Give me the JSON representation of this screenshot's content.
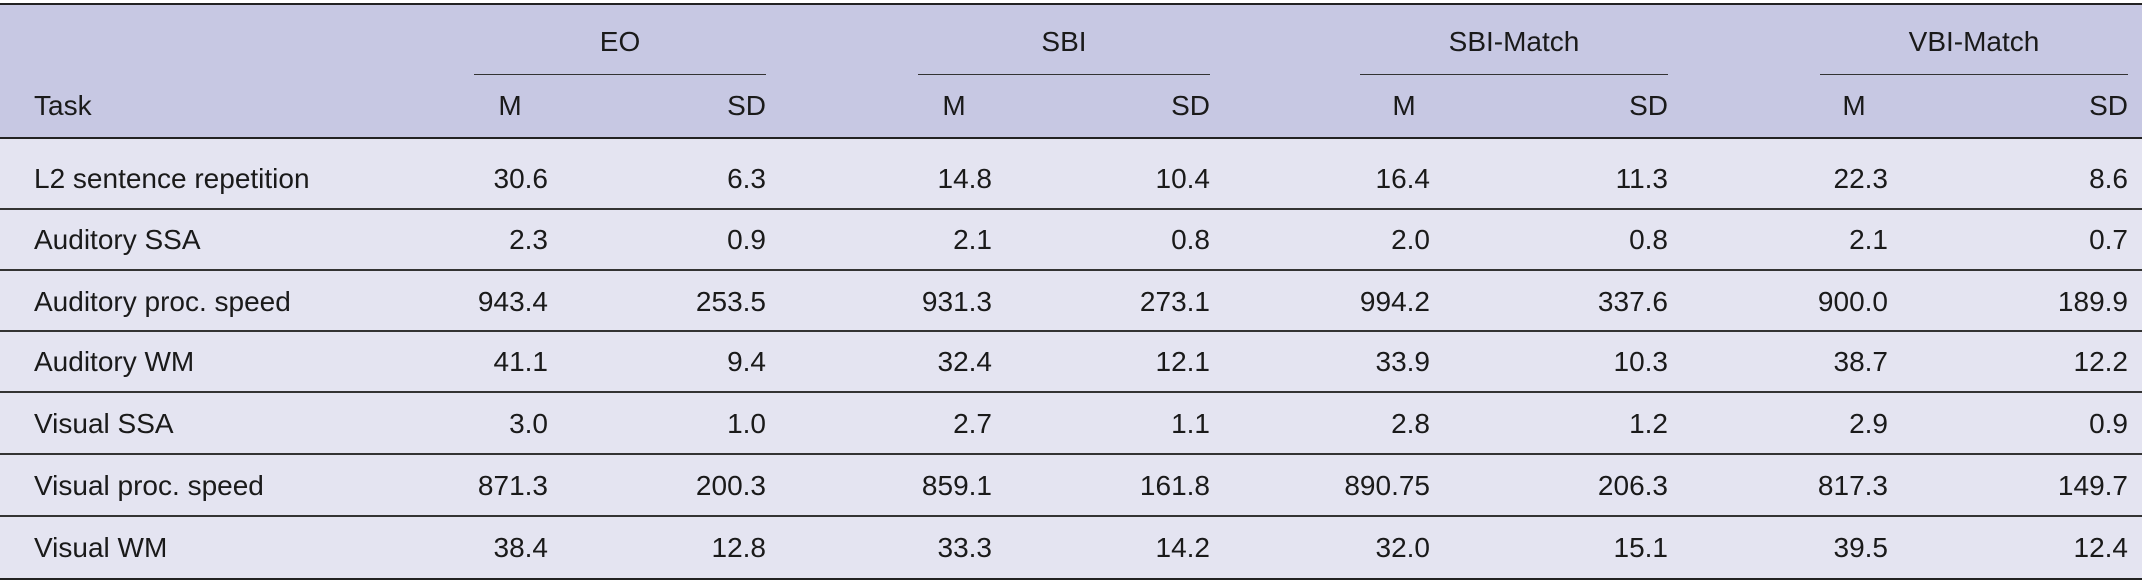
{
  "table": {
    "task_header": "Task",
    "groups": [
      "EO",
      "SBI",
      "SBI-Match",
      "VBI-Match"
    ],
    "m_label": "M",
    "sd_label": "SD",
    "rows": [
      {
        "task": "L2 sentence repetition",
        "values": [
          "30.6",
          "6.3",
          "14.8",
          "10.4",
          "16.4",
          "11.3",
          "22.3",
          "8.6"
        ]
      },
      {
        "task": "Auditory SSA",
        "values": [
          "2.3",
          "0.9",
          "2.1",
          "0.8",
          "2.0",
          "0.8",
          "2.1",
          "0.7"
        ]
      },
      {
        "task": "Auditory proc. speed",
        "values": [
          "943.4",
          "253.5",
          "931.3",
          "273.1",
          "994.2",
          "337.6",
          "900.0",
          "189.9"
        ]
      },
      {
        "task": "Auditory WM",
        "values": [
          "41.1",
          "9.4",
          "32.4",
          "12.1",
          "33.9",
          "10.3",
          "38.7",
          "12.2"
        ]
      },
      {
        "task": "Visual SSA",
        "values": [
          "3.0",
          "1.0",
          "2.7",
          "1.1",
          "2.8",
          "1.2",
          "2.9",
          "0.9"
        ]
      },
      {
        "task": "Visual proc. speed",
        "values": [
          "871.3",
          "200.3",
          "859.1",
          "161.8",
          "890.75",
          "206.3",
          "817.3",
          "149.7"
        ]
      },
      {
        "task": "Visual WM",
        "values": [
          "38.4",
          "12.8",
          "33.3",
          "14.2",
          "32.0",
          "15.1",
          "39.5",
          "12.4"
        ]
      }
    ]
  }
}
